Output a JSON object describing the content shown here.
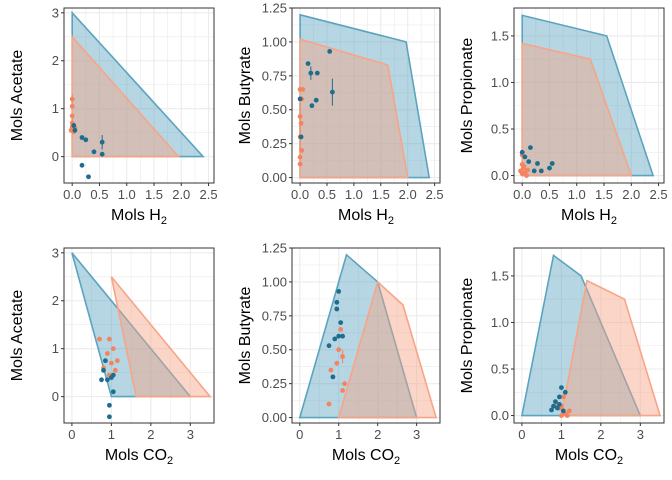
{
  "colors": {
    "blue": "#1f6d8c",
    "blue_fill": "#5ba4bf",
    "orange": "#f4835f",
    "orange_fill": "#f7a586",
    "grid": "#ebebeb",
    "panel_border": "#333333"
  },
  "chart_data": [
    {
      "type": "scatter",
      "xlabel": "Mols H",
      "xlabel_sub": "2",
      "ylabel": "Mols Acetate",
      "xlim": [
        -0.15,
        2.6
      ],
      "ylim": [
        -0.55,
        3.1
      ],
      "xticks": [
        0,
        0.5,
        1,
        1.5,
        2,
        2.5
      ],
      "xtick_labels": [
        "0.0",
        "0.5",
        "1.0",
        "1.5",
        "2.0",
        "2.5"
      ],
      "yticks": [
        0,
        1,
        2,
        3
      ],
      "ytick_labels": [
        "0",
        "1",
        "2",
        "3"
      ],
      "region_blue": [
        [
          0,
          3
        ],
        [
          2.4,
          0
        ],
        [
          0,
          0
        ]
      ],
      "region_orange": [
        [
          0,
          2.5
        ],
        [
          1.95,
          0
        ],
        [
          0,
          0
        ]
      ],
      "series": [
        {
          "color": "orange",
          "points": [
            [
              0.0,
              1.2
            ],
            [
              0.0,
              1.05
            ],
            [
              0.0,
              0.85
            ],
            [
              0.0,
              0.7
            ],
            [
              0.0,
              0.62
            ],
            [
              0.02,
              0.58
            ],
            [
              -0.02,
              0.55
            ],
            [
              0.03,
              0.52
            ],
            [
              0.05,
              0.6
            ]
          ],
          "errors": [
            0.1,
            0,
            0,
            0.1,
            0,
            0,
            0,
            0,
            0
          ]
        },
        {
          "color": "blue",
          "points": [
            [
              0.03,
              0.65
            ],
            [
              0.05,
              0.55
            ],
            [
              0.18,
              0.4
            ],
            [
              0.25,
              0.35
            ],
            [
              0.55,
              0.3
            ],
            [
              0.4,
              0.1
            ],
            [
              0.18,
              -0.18
            ],
            [
              0.3,
              -0.42
            ],
            [
              0.55,
              0.05
            ]
          ],
          "errors": [
            0.05,
            0,
            0,
            0,
            0.15,
            0,
            0,
            0,
            0
          ]
        }
      ]
    },
    {
      "type": "scatter",
      "xlabel": "Mols H",
      "xlabel_sub": "2",
      "ylabel": "Mols Butyrate",
      "xlim": [
        -0.15,
        2.6
      ],
      "ylim": [
        -0.04,
        1.25
      ],
      "xticks": [
        0,
        0.5,
        1,
        1.5,
        2,
        2.5
      ],
      "xtick_labels": [
        "0.0",
        "0.5",
        "1.0",
        "1.5",
        "2.0",
        "2.5"
      ],
      "yticks": [
        0,
        0.25,
        0.5,
        0.75,
        1,
        1.25
      ],
      "ytick_labels": [
        "0.00",
        "0.25",
        "0.50",
        "0.75",
        "1.00",
        "1.25"
      ],
      "region_blue": [
        [
          0,
          1.2
        ],
        [
          1.97,
          1.0
        ],
        [
          2.4,
          0
        ],
        [
          0,
          0
        ]
      ],
      "region_orange": [
        [
          0,
          1.02
        ],
        [
          1.63,
          0.83
        ],
        [
          2.0,
          0
        ],
        [
          0,
          0
        ]
      ],
      "series": [
        {
          "color": "orange",
          "points": [
            [
              0.0,
              0.65
            ],
            [
              0.03,
              0.58
            ],
            [
              0.0,
              0.45
            ],
            [
              0.02,
              0.4
            ],
            [
              0.0,
              0.3
            ],
            [
              0.03,
              0.2
            ],
            [
              0.0,
              0.15
            ],
            [
              0.0,
              0.1
            ],
            [
              0.05,
              0.65
            ]
          ],
          "errors": [
            0,
            0,
            0.1,
            0,
            0.1,
            0,
            0,
            0,
            0
          ]
        },
        {
          "color": "blue",
          "points": [
            [
              0.0,
              0.58
            ],
            [
              0.15,
              0.84
            ],
            [
              0.2,
              0.77
            ],
            [
              0.32,
              0.77
            ],
            [
              0.55,
              0.93
            ],
            [
              0.6,
              0.63
            ],
            [
              0.3,
              0.57
            ],
            [
              0.22,
              0.53
            ],
            [
              0.02,
              0.3
            ]
          ],
          "errors": [
            0,
            0,
            0.05,
            0,
            0,
            0.1,
            0,
            0,
            0
          ]
        }
      ]
    },
    {
      "type": "scatter",
      "xlabel": "Mols H",
      "xlabel_sub": "2",
      "ylabel": "Mols Propionate",
      "xlim": [
        -0.15,
        2.6
      ],
      "ylim": [
        -0.08,
        1.8
      ],
      "xticks": [
        0,
        0.5,
        1,
        1.5,
        2,
        2.5
      ],
      "xtick_labels": [
        "0.0",
        "0.5",
        "1.0",
        "1.5",
        "2.0",
        "2.5"
      ],
      "yticks": [
        0,
        0.5,
        1,
        1.5
      ],
      "ytick_labels": [
        "0.0",
        "0.5",
        "1.0",
        "1.5"
      ],
      "region_blue": [
        [
          0,
          1.72
        ],
        [
          1.55,
          1.5
        ],
        [
          2.4,
          0
        ],
        [
          0,
          0
        ]
      ],
      "region_orange": [
        [
          0,
          1.42
        ],
        [
          1.25,
          1.25
        ],
        [
          2.0,
          0
        ],
        [
          0,
          0
        ]
      ],
      "series": [
        {
          "color": "orange",
          "points": [
            [
              0.0,
              0.22
            ],
            [
              0.0,
              0.12
            ],
            [
              0.02,
              0.08
            ],
            [
              -0.03,
              0.05
            ],
            [
              0.05,
              0.03
            ],
            [
              0.1,
              0.06
            ],
            [
              0.03,
              0.1
            ],
            [
              0.0,
              0.02
            ],
            [
              0.08,
              0.0
            ]
          ],
          "errors": [
            0,
            0,
            0,
            0,
            0,
            0,
            0,
            0,
            0
          ]
        },
        {
          "color": "blue",
          "points": [
            [
              0.15,
              0.3
            ],
            [
              0.05,
              0.2
            ],
            [
              0.12,
              0.15
            ],
            [
              0.28,
              0.13
            ],
            [
              0.55,
              0.13
            ],
            [
              0.5,
              0.08
            ],
            [
              0.35,
              0.05
            ],
            [
              0.22,
              0.05
            ],
            [
              0.0,
              0.25
            ]
          ],
          "errors": [
            0,
            0,
            0,
            0,
            0,
            0,
            0,
            0,
            0
          ]
        }
      ]
    },
    {
      "type": "scatter",
      "xlabel": "Mols CO",
      "xlabel_sub": "2",
      "ylabel": "Mols Acetate",
      "xlim": [
        -0.2,
        3.6
      ],
      "ylim": [
        -0.55,
        3.1
      ],
      "xticks": [
        0,
        1,
        2,
        3
      ],
      "xtick_labels": [
        "0",
        "1",
        "2",
        "3"
      ],
      "yticks": [
        0,
        1,
        2,
        3
      ],
      "ytick_labels": [
        "0",
        "1",
        "2",
        "3"
      ],
      "region_blue": [
        [
          0,
          3
        ],
        [
          3.0,
          0
        ],
        [
          1.0,
          0
        ]
      ],
      "region_orange": [
        [
          1.0,
          2.5
        ],
        [
          3.5,
          0
        ],
        [
          1.63,
          0
        ]
      ],
      "series": [
        {
          "color": "orange",
          "points": [
            [
              0.7,
              1.2
            ],
            [
              0.95,
              1.2
            ],
            [
              0.9,
              0.9
            ],
            [
              1.05,
              1.0
            ],
            [
              1.0,
              0.7
            ],
            [
              1.15,
              0.75
            ],
            [
              1.1,
              0.55
            ],
            [
              0.95,
              0.45
            ],
            [
              0.8,
              0.6
            ]
          ],
          "errors": [
            0,
            0,
            0,
            0,
            0,
            0,
            0,
            0,
            0
          ]
        },
        {
          "color": "blue",
          "points": [
            [
              0.85,
              0.75
            ],
            [
              0.8,
              0.55
            ],
            [
              0.75,
              0.35
            ],
            [
              0.9,
              0.35
            ],
            [
              1.0,
              0.4
            ],
            [
              1.05,
              0.1
            ],
            [
              0.95,
              -0.18
            ],
            [
              0.95,
              -0.42
            ],
            [
              1.05,
              0.45
            ]
          ],
          "errors": [
            0,
            0,
            0,
            0,
            0,
            0,
            0,
            0,
            0
          ]
        }
      ]
    },
    {
      "type": "scatter",
      "xlabel": "Mols CO",
      "xlabel_sub": "2",
      "ylabel": "Mols Butyrate",
      "xlim": [
        -0.2,
        3.6
      ],
      "ylim": [
        -0.04,
        1.25
      ],
      "xticks": [
        0,
        1,
        2,
        3
      ],
      "xtick_labels": [
        "0",
        "1",
        "2",
        "3"
      ],
      "yticks": [
        0,
        0.25,
        0.5,
        0.75,
        1,
        1.25
      ],
      "ytick_labels": [
        "0.00",
        "0.25",
        "0.50",
        "0.75",
        "1.00",
        "1.25"
      ],
      "region_blue": [
        [
          1.2,
          1.2
        ],
        [
          2.0,
          1.0
        ],
        [
          3.0,
          0
        ],
        [
          0,
          0
        ]
      ],
      "region_orange": [
        [
          2.0,
          1.0
        ],
        [
          2.65,
          0.83
        ],
        [
          3.5,
          0
        ],
        [
          1.0,
          0
        ]
      ],
      "series": [
        {
          "color": "orange",
          "points": [
            [
              1.05,
              0.65
            ],
            [
              1.0,
              0.5
            ],
            [
              1.1,
              0.45
            ],
            [
              0.95,
              0.4
            ],
            [
              0.85,
              0.3
            ],
            [
              0.8,
              0.35
            ],
            [
              1.1,
              0.2
            ],
            [
              1.15,
              0.25
            ],
            [
              0.75,
              0.1
            ]
          ],
          "errors": [
            0,
            0,
            0.05,
            0,
            0,
            0,
            0,
            0,
            0
          ]
        },
        {
          "color": "blue",
          "points": [
            [
              0.95,
              0.8
            ],
            [
              1.0,
              0.93
            ],
            [
              0.95,
              0.85
            ],
            [
              1.05,
              0.7
            ],
            [
              1.0,
              0.6
            ],
            [
              1.1,
              0.6
            ],
            [
              0.9,
              0.58
            ],
            [
              0.75,
              0.53
            ],
            [
              0.85,
              0.3
            ]
          ],
          "errors": [
            0,
            0,
            0,
            0,
            0,
            0,
            0,
            0,
            0
          ]
        }
      ]
    },
    {
      "type": "scatter",
      "xlabel": "Mols CO",
      "xlabel_sub": "2",
      "ylabel": "Mols Propionate",
      "xlim": [
        -0.2,
        3.6
      ],
      "ylim": [
        -0.08,
        1.8
      ],
      "xticks": [
        0,
        1,
        2,
        3
      ],
      "xtick_labels": [
        "0",
        "1",
        "2",
        "3"
      ],
      "yticks": [
        0,
        0.5,
        1,
        1.5
      ],
      "ytick_labels": [
        "0.0",
        "0.5",
        "1.0",
        "1.5"
      ],
      "region_blue": [
        [
          0.8,
          1.72
        ],
        [
          1.5,
          1.5
        ],
        [
          3.0,
          0
        ],
        [
          0,
          0
        ]
      ],
      "region_orange": [
        [
          1.65,
          1.45
        ],
        [
          2.6,
          1.25
        ],
        [
          3.5,
          0
        ],
        [
          1.0,
          0
        ]
      ],
      "series": [
        {
          "color": "orange",
          "points": [
            [
              1.0,
              0.1
            ],
            [
              1.05,
              0.05
            ],
            [
              0.95,
              0.08
            ],
            [
              1.1,
              0.02
            ],
            [
              1.0,
              0.0
            ],
            [
              1.2,
              0.05
            ],
            [
              0.9,
              0.12
            ],
            [
              1.15,
              0.0
            ],
            [
              1.05,
              0.2
            ]
          ],
          "errors": [
            0,
            0,
            0,
            0,
            0,
            0,
            0,
            0,
            0
          ]
        },
        {
          "color": "blue",
          "points": [
            [
              1.0,
              0.3
            ],
            [
              1.1,
              0.25
            ],
            [
              0.95,
              0.2
            ],
            [
              0.85,
              0.15
            ],
            [
              0.8,
              0.1
            ],
            [
              0.9,
              0.08
            ],
            [
              1.05,
              0.05
            ],
            [
              0.95,
              0.12
            ],
            [
              0.75,
              0.06
            ]
          ],
          "errors": [
            0,
            0,
            0,
            0,
            0,
            0,
            0,
            0,
            0
          ]
        }
      ]
    }
  ]
}
